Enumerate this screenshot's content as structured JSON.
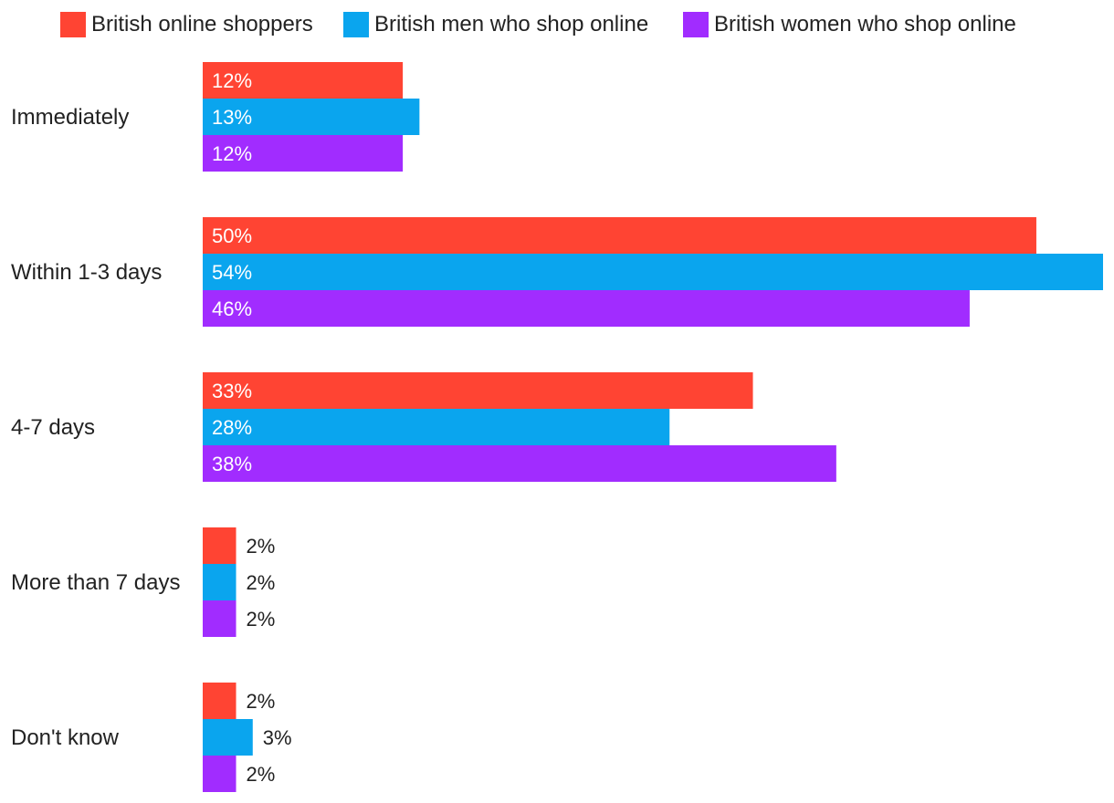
{
  "chart_data": {
    "type": "bar",
    "orientation": "horizontal",
    "categories": [
      "Immediately",
      "Within 1-3 days",
      "4-7 days",
      "More than 7 days",
      "Don't know"
    ],
    "series": [
      {
        "name": "British online shoppers",
        "color": "#ff4433",
        "values": [
          12,
          50,
          33,
          2,
          2
        ],
        "labels": [
          "12%",
          "50%",
          "33%",
          "2%",
          "2%"
        ]
      },
      {
        "name": "British men who shop online",
        "color": "#0aa5ee",
        "values": [
          13,
          54,
          28,
          2,
          3
        ],
        "labels": [
          "13%",
          "54%",
          "28%",
          "2%",
          "3%"
        ]
      },
      {
        "name": "British women who shop online",
        "color": "#a12cff",
        "values": [
          12,
          46,
          38,
          2,
          2
        ],
        "labels": [
          "12%",
          "46%",
          "38%",
          "2%",
          "2%"
        ]
      }
    ],
    "xlim": [
      0,
      54
    ],
    "grid": false,
    "legend_position": "top"
  }
}
